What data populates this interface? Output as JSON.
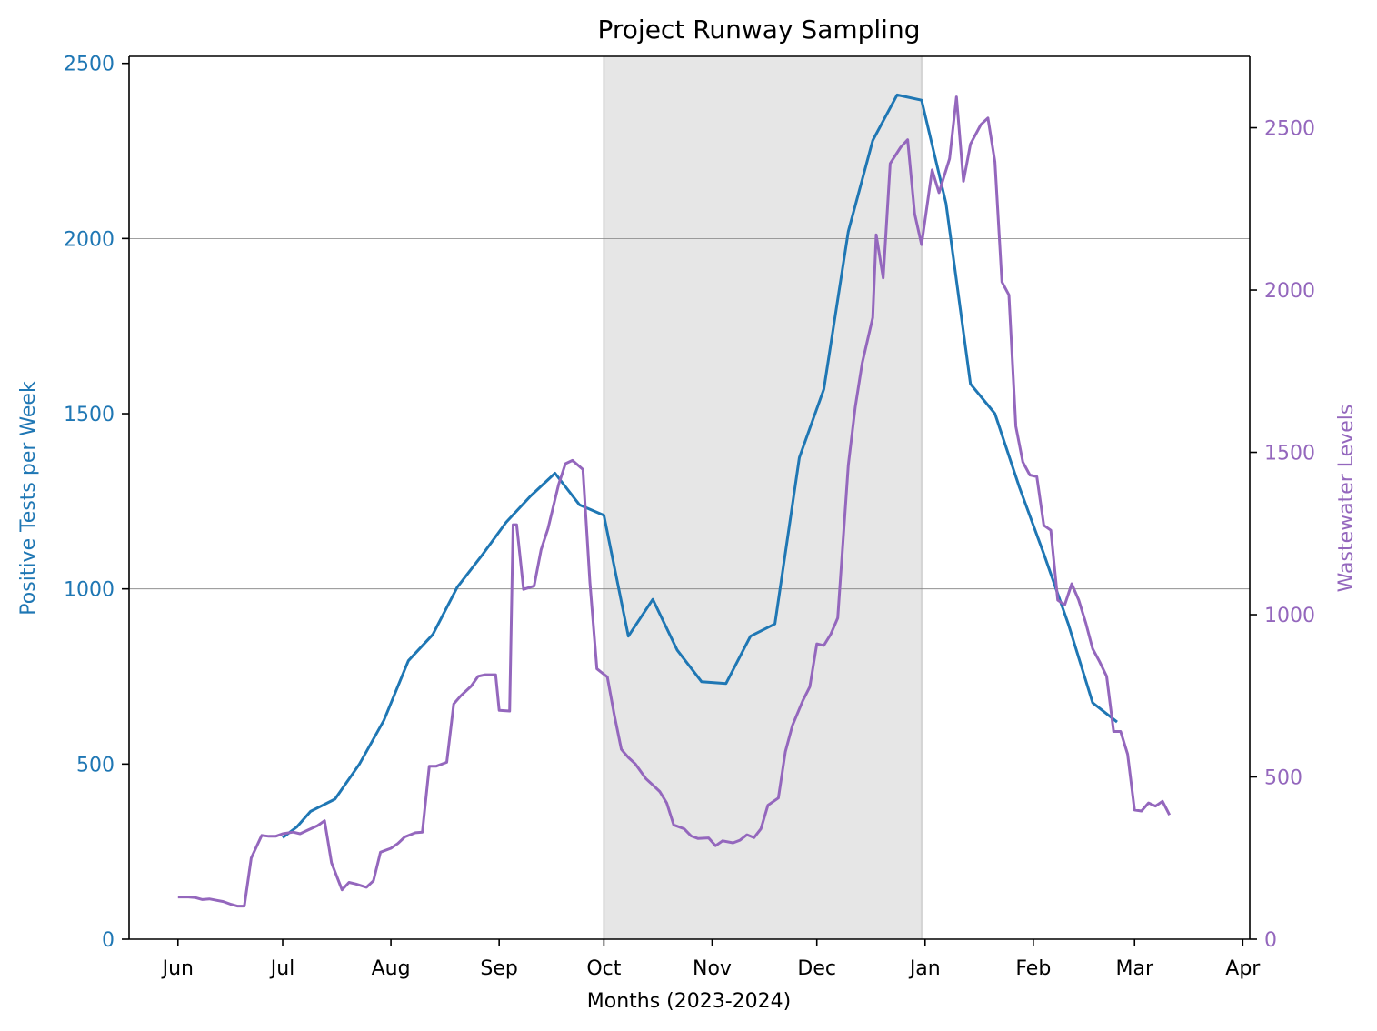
{
  "chart_data": {
    "type": "line",
    "title": "Project Runway Sampling",
    "xlabel": "Months (2023-2024)",
    "ylabel_left": "Positive Tests per Week",
    "ylabel_right": "Wastewater Levels",
    "x_ticks": [
      "Jun",
      "Jul",
      "Aug",
      "Sep",
      "Oct",
      "Nov",
      "Dec",
      "Jan",
      "Feb",
      "Mar",
      "Apr"
    ],
    "x_tick_dates": [
      "2023-06-01",
      "2023-07-01",
      "2023-08-01",
      "2023-09-01",
      "2023-10-01",
      "2023-11-01",
      "2023-12-01",
      "2024-01-01",
      "2024-02-01",
      "2024-03-01",
      "2024-04-01"
    ],
    "xlim": [
      "2023-05-18",
      "2024-04-03"
    ],
    "ylim_left": [
      0,
      2520
    ],
    "ylim_right": [
      0,
      2720
    ],
    "yticks_left": [
      "0",
      "500",
      "1000",
      "1500",
      "2000",
      "2500"
    ],
    "yticks_right": [
      "0",
      "500",
      "1000",
      "1500",
      "2000",
      "2500"
    ],
    "gridlines_left": [
      1000,
      2000
    ],
    "shaded_region": [
      "2023-10-01",
      "2023-12-31"
    ],
    "colors": {
      "left_axis": "#1f77b4",
      "right_axis": "#9467bd",
      "shade": "#e6e6e6",
      "grid": "#808080"
    },
    "series": [
      {
        "axis": "left",
        "color": "#1f77b4",
        "points": [
          [
            "2023-07-01",
            290
          ],
          [
            "2023-07-05",
            320
          ],
          [
            "2023-07-09",
            365
          ],
          [
            "2023-07-16",
            400
          ],
          [
            "2023-07-23",
            500
          ],
          [
            "2023-07-30",
            625
          ],
          [
            "2023-08-06",
            795
          ],
          [
            "2023-08-13",
            870
          ],
          [
            "2023-08-20",
            1005
          ],
          [
            "2023-08-27",
            1095
          ],
          [
            "2023-09-03",
            1190
          ],
          [
            "2023-09-10",
            1265
          ],
          [
            "2023-09-17",
            1330
          ],
          [
            "2023-09-24",
            1240
          ],
          [
            "2023-10-01",
            1210
          ],
          [
            "2023-10-08",
            865
          ],
          [
            "2023-10-15",
            970
          ],
          [
            "2023-10-22",
            825
          ],
          [
            "2023-10-29",
            735
          ],
          [
            "2023-11-05",
            730
          ],
          [
            "2023-11-12",
            865
          ],
          [
            "2023-11-19",
            900
          ],
          [
            "2023-11-26",
            1375
          ],
          [
            "2023-12-03",
            1570
          ],
          [
            "2023-12-10",
            2020
          ],
          [
            "2023-12-17",
            2280
          ],
          [
            "2023-12-24",
            2410
          ],
          [
            "2023-12-31",
            2395
          ],
          [
            "2024-01-07",
            2100
          ],
          [
            "2024-01-14",
            1585
          ],
          [
            "2024-01-21",
            1500
          ],
          [
            "2024-01-28",
            1290
          ],
          [
            "2024-02-04",
            1100
          ],
          [
            "2024-02-11",
            900
          ],
          [
            "2024-02-18",
            675
          ],
          [
            "2024-02-25",
            620
          ]
        ]
      },
      {
        "axis": "right",
        "color": "#9467bd",
        "points": [
          [
            "2023-06-01",
            130
          ],
          [
            "2023-06-04",
            130
          ],
          [
            "2023-06-06",
            128
          ],
          [
            "2023-06-08",
            122
          ],
          [
            "2023-06-10",
            124
          ],
          [
            "2023-06-12",
            120
          ],
          [
            "2023-06-14",
            116
          ],
          [
            "2023-06-16",
            108
          ],
          [
            "2023-06-18",
            102
          ],
          [
            "2023-06-20",
            102
          ],
          [
            "2023-06-22",
            250
          ],
          [
            "2023-06-25",
            320
          ],
          [
            "2023-06-27",
            317
          ],
          [
            "2023-06-29",
            317
          ],
          [
            "2023-07-01",
            325
          ],
          [
            "2023-07-04",
            330
          ],
          [
            "2023-07-06",
            325
          ],
          [
            "2023-07-08",
            335
          ],
          [
            "2023-07-11",
            350
          ],
          [
            "2023-07-13",
            365
          ],
          [
            "2023-07-15",
            235
          ],
          [
            "2023-07-18",
            152
          ],
          [
            "2023-07-20",
            175
          ],
          [
            "2023-07-22",
            170
          ],
          [
            "2023-07-25",
            160
          ],
          [
            "2023-07-27",
            180
          ],
          [
            "2023-07-29",
            268
          ],
          [
            "2023-08-01",
            280
          ],
          [
            "2023-08-03",
            295
          ],
          [
            "2023-08-05",
            315
          ],
          [
            "2023-08-08",
            328
          ],
          [
            "2023-08-10",
            330
          ],
          [
            "2023-08-12",
            533
          ],
          [
            "2023-08-14",
            533
          ],
          [
            "2023-08-17",
            545
          ],
          [
            "2023-08-19",
            725
          ],
          [
            "2023-08-21",
            750
          ],
          [
            "2023-08-24",
            780
          ],
          [
            "2023-08-26",
            810
          ],
          [
            "2023-08-28",
            815
          ],
          [
            "2023-08-31",
            815
          ],
          [
            "2023-09-01",
            705
          ],
          [
            "2023-09-04",
            703
          ],
          [
            "2023-09-05",
            1277
          ],
          [
            "2023-09-06",
            1277
          ],
          [
            "2023-09-08",
            1078
          ],
          [
            "2023-09-10",
            1085
          ],
          [
            "2023-09-11",
            1088
          ],
          [
            "2023-09-13",
            1200
          ],
          [
            "2023-09-15",
            1265
          ],
          [
            "2023-09-18",
            1400
          ],
          [
            "2023-09-20",
            1465
          ],
          [
            "2023-09-22",
            1475
          ],
          [
            "2023-09-25",
            1447
          ],
          [
            "2023-09-27",
            1100
          ],
          [
            "2023-09-29",
            833
          ],
          [
            "2023-10-02",
            808
          ],
          [
            "2023-10-04",
            690
          ],
          [
            "2023-10-06",
            585
          ],
          [
            "2023-10-08",
            560
          ],
          [
            "2023-10-10",
            540
          ],
          [
            "2023-10-13",
            495
          ],
          [
            "2023-10-15",
            475
          ],
          [
            "2023-10-17",
            455
          ],
          [
            "2023-10-19",
            420
          ],
          [
            "2023-10-21",
            352
          ],
          [
            "2023-10-24",
            340
          ],
          [
            "2023-10-26",
            318
          ],
          [
            "2023-10-28",
            310
          ],
          [
            "2023-10-31",
            312
          ],
          [
            "2023-11-02",
            288
          ],
          [
            "2023-11-04",
            303
          ],
          [
            "2023-11-07",
            297
          ],
          [
            "2023-11-09",
            305
          ],
          [
            "2023-11-11",
            322
          ],
          [
            "2023-11-13",
            313
          ],
          [
            "2023-11-15",
            340
          ],
          [
            "2023-11-17",
            413
          ],
          [
            "2023-11-20",
            435
          ],
          [
            "2023-11-22",
            578
          ],
          [
            "2023-11-24",
            658
          ],
          [
            "2023-11-27",
            735
          ],
          [
            "2023-11-29",
            778
          ],
          [
            "2023-12-01",
            910
          ],
          [
            "2023-12-03",
            905
          ],
          [
            "2023-12-05",
            940
          ],
          [
            "2023-12-07",
            990
          ],
          [
            "2023-12-10",
            1460
          ],
          [
            "2023-12-12",
            1640
          ],
          [
            "2023-12-14",
            1775
          ],
          [
            "2023-12-17",
            1915
          ],
          [
            "2023-12-18",
            2170
          ],
          [
            "2023-12-20",
            2037
          ],
          [
            "2023-12-22",
            2390
          ],
          [
            "2023-12-25",
            2440
          ],
          [
            "2023-12-27",
            2463
          ],
          [
            "2023-12-29",
            2235
          ],
          [
            "2023-12-31",
            2140
          ],
          [
            "2024-01-03",
            2370
          ],
          [
            "2024-01-05",
            2300
          ],
          [
            "2024-01-08",
            2405
          ],
          [
            "2024-01-10",
            2595
          ],
          [
            "2024-01-12",
            2335
          ],
          [
            "2024-01-14",
            2450
          ],
          [
            "2024-01-17",
            2510
          ],
          [
            "2024-01-19",
            2530
          ],
          [
            "2024-01-21",
            2395
          ],
          [
            "2024-01-23",
            2025
          ],
          [
            "2024-01-25",
            1985
          ],
          [
            "2024-01-27",
            1580
          ],
          [
            "2024-01-29",
            1470
          ],
          [
            "2024-01-31",
            1430
          ],
          [
            "2024-02-02",
            1425
          ],
          [
            "2024-02-04",
            1275
          ],
          [
            "2024-02-06",
            1260
          ],
          [
            "2024-02-08",
            1045
          ],
          [
            "2024-02-10",
            1030
          ],
          [
            "2024-02-12",
            1095
          ],
          [
            "2024-02-14",
            1045
          ],
          [
            "2024-02-16",
            975
          ],
          [
            "2024-02-18",
            895
          ],
          [
            "2024-02-20",
            855
          ],
          [
            "2024-02-22",
            810
          ],
          [
            "2024-02-24",
            640
          ],
          [
            "2024-02-26",
            640
          ],
          [
            "2024-02-28",
            570
          ],
          [
            "2024-03-01",
            398
          ],
          [
            "2024-03-03",
            395
          ],
          [
            "2024-03-05",
            420
          ],
          [
            "2024-03-07",
            410
          ],
          [
            "2024-03-09",
            425
          ],
          [
            "2024-03-11",
            383
          ]
        ]
      }
    ]
  }
}
